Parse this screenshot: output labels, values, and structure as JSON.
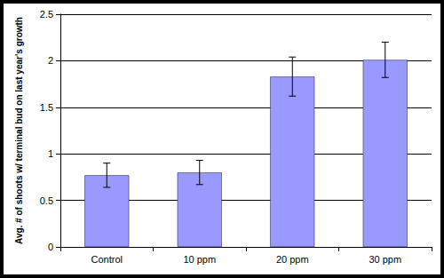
{
  "chart_data": {
    "type": "bar",
    "y_label": "Avg. # of shoots w/ terminal bud on last year's growth",
    "categories": [
      "Control",
      "10 ppm",
      "20 ppm",
      "30 ppm"
    ],
    "values": [
      0.77,
      0.8,
      1.83,
      2.01
    ],
    "errors": [
      0.13,
      0.13,
      0.21,
      0.19
    ],
    "color": "#9999ff",
    "ylim": [
      0,
      2.5
    ],
    "yticks": [
      0,
      0.5,
      1,
      1.5,
      2,
      2.5
    ],
    "grid": true
  }
}
